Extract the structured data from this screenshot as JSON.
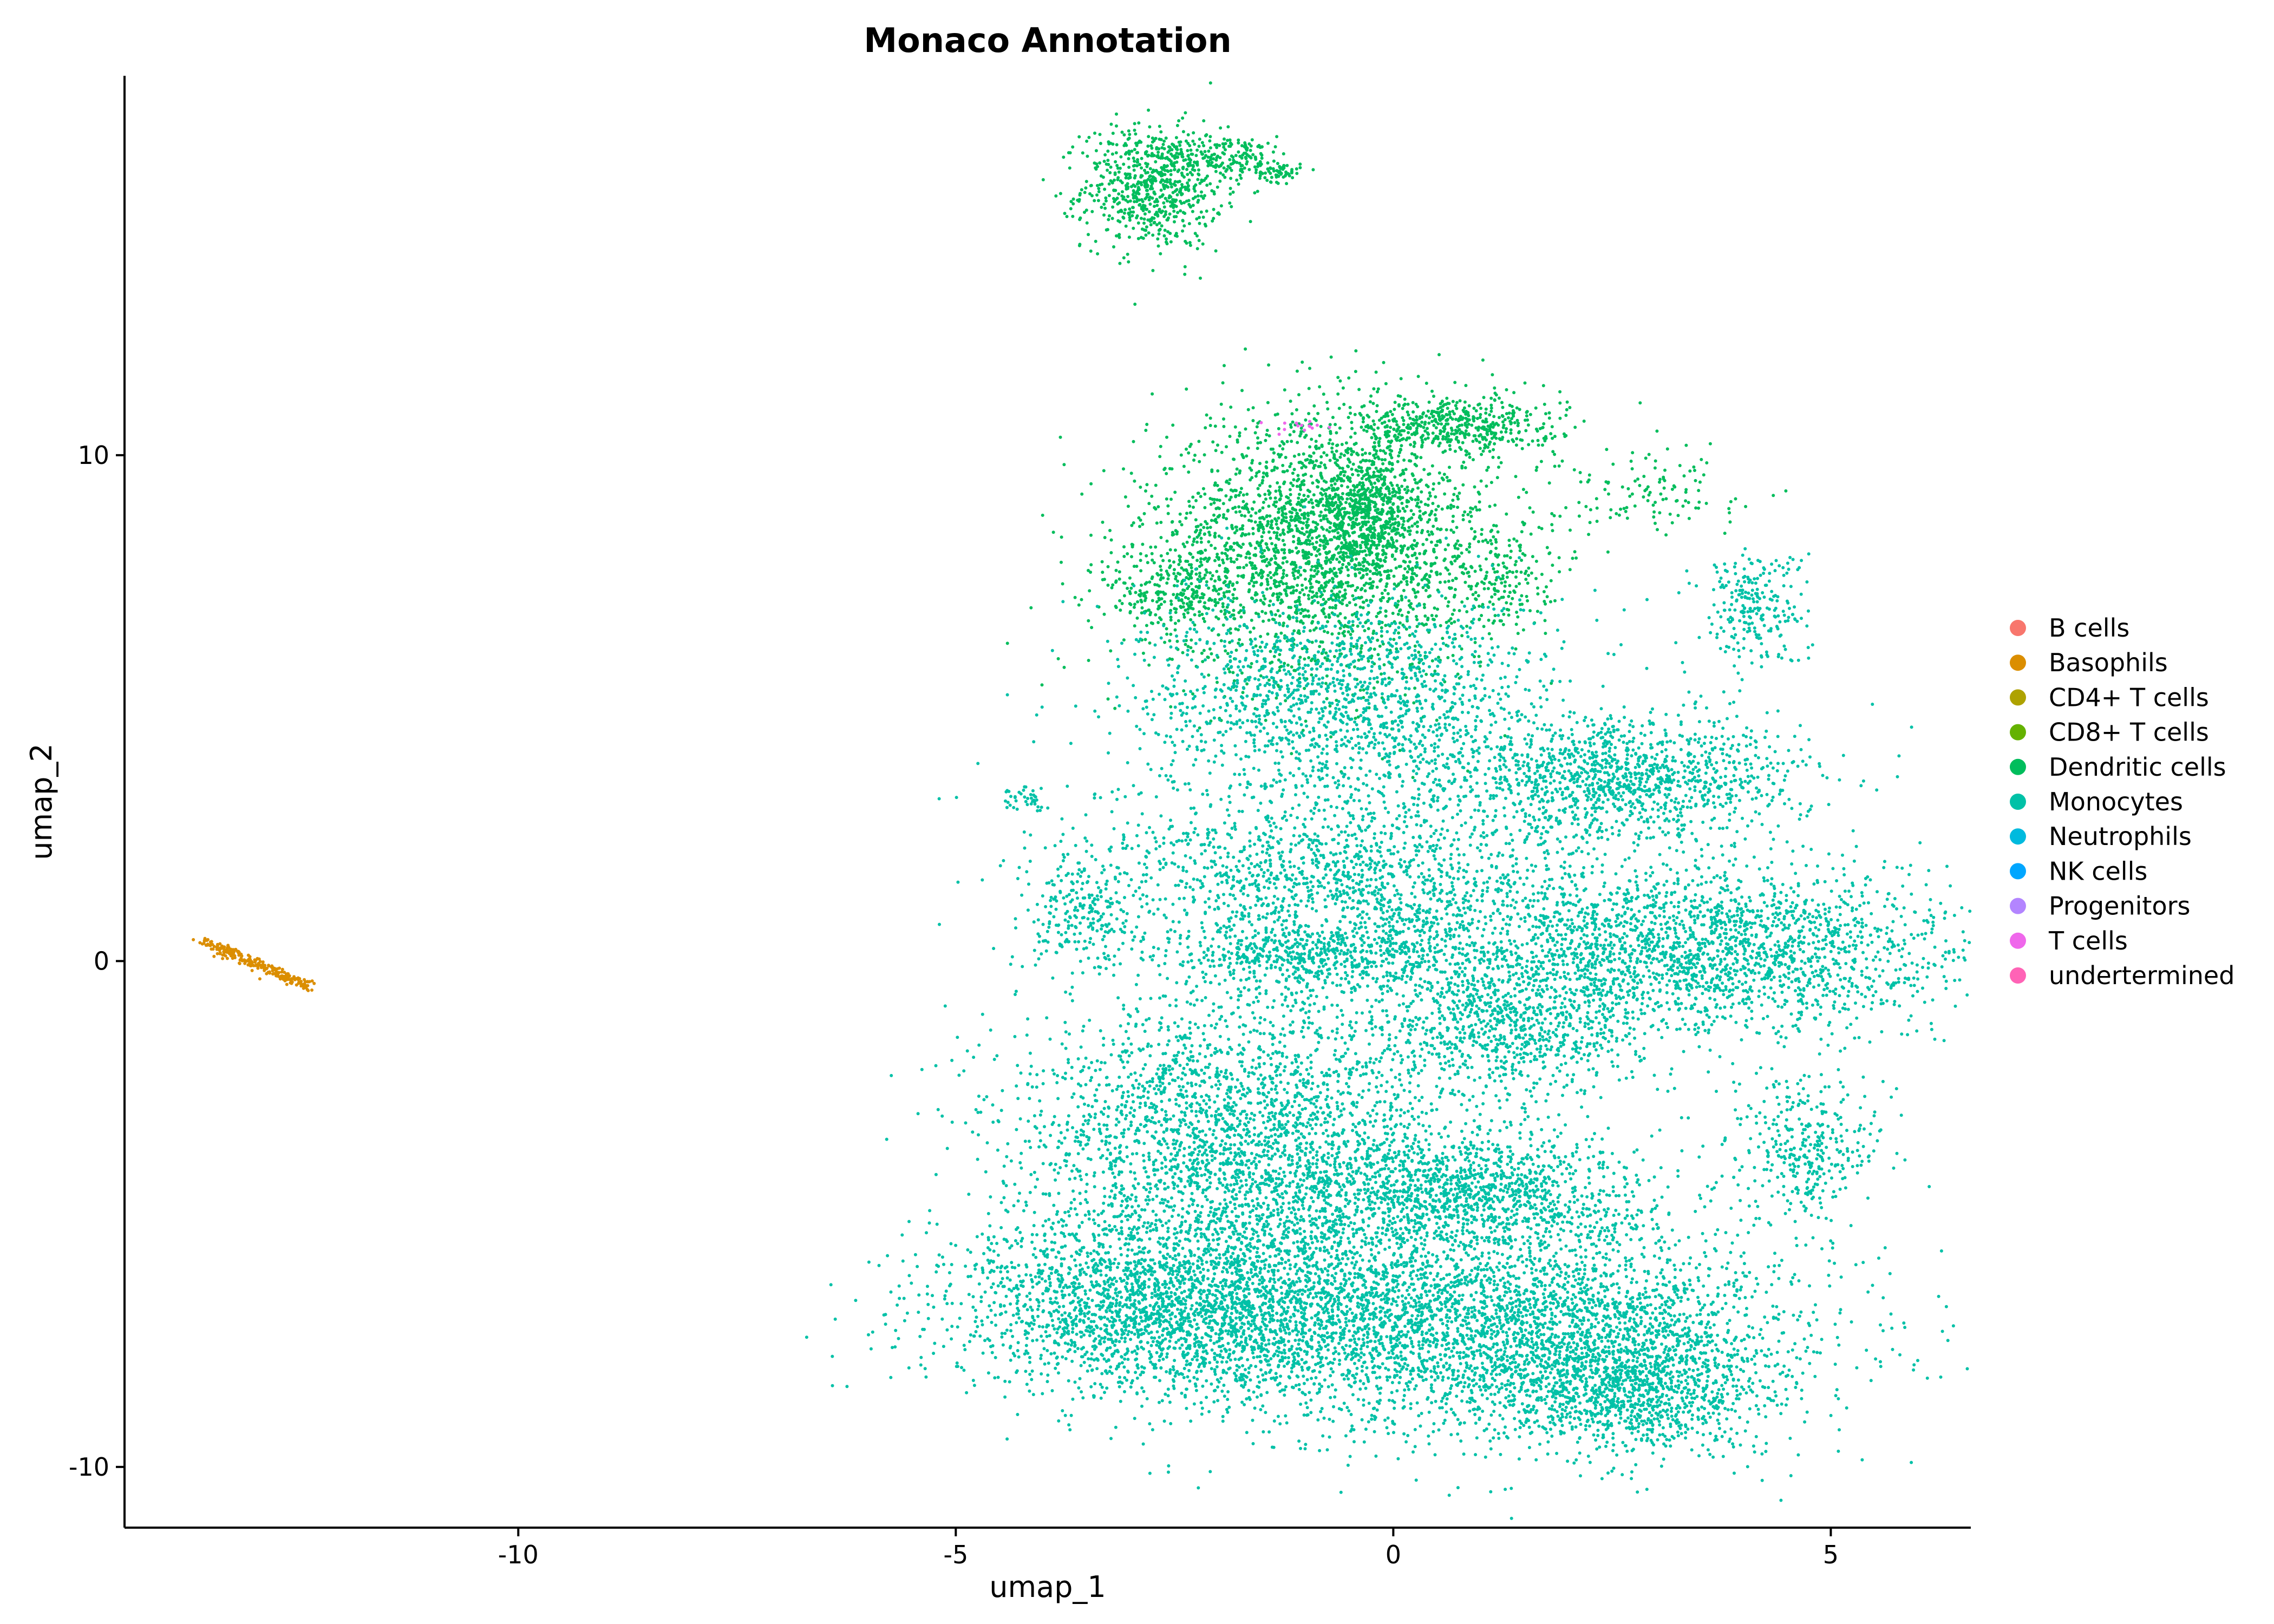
{
  "chart_data": {
    "type": "scatter",
    "title": "Monaco Annotation",
    "xlabel": "umap_1",
    "ylabel": "umap_2",
    "xlim": [
      -14.5,
      6.6
    ],
    "ylim": [
      -11.2,
      17.5
    ],
    "xticks": [
      -10,
      -5,
      0,
      5
    ],
    "xtick_labels": [
      "-10",
      "-5",
      "0",
      "5"
    ],
    "yticks": [
      -10,
      0,
      10
    ],
    "ytick_labels": [
      "-10",
      "0",
      "10"
    ],
    "grid": false,
    "legend_position": "right",
    "legend": [
      {
        "name": "B cells",
        "color": "#F8766D"
      },
      {
        "name": "Basophils",
        "color": "#DB8E00"
      },
      {
        "name": "CD4+ T cells",
        "color": "#AEA200"
      },
      {
        "name": "CD8+ T cells",
        "color": "#64B200"
      },
      {
        "name": "Dendritic cells",
        "color": "#00BD5C"
      },
      {
        "name": "Monocytes",
        "color": "#00C1A7"
      },
      {
        "name": "Neutrophils",
        "color": "#00BADE"
      },
      {
        "name": "NK cells",
        "color": "#00A6FF"
      },
      {
        "name": "Progenitors",
        "color": "#B385FF"
      },
      {
        "name": "T cells",
        "color": "#EF67EB"
      },
      {
        "name": "undertermined",
        "color": "#FF63B6"
      }
    ],
    "series": [
      {
        "name": "Basophils",
        "color": "#DB8E00",
        "clusters": [
          {
            "type": "line",
            "x1": -13.6,
            "y1": 0.4,
            "x2": -12.4,
            "y2": -0.5,
            "spread": 0.05,
            "n": 260
          }
        ]
      },
      {
        "name": "Dendritic cells",
        "color": "#00BD5C",
        "clusters": [
          {
            "cx": -2.75,
            "cy": 15.3,
            "sx": 0.4,
            "sy": 0.6,
            "n": 700
          },
          {
            "cx": -1.9,
            "cy": 15.9,
            "sx": 0.4,
            "sy": 0.2,
            "n": 180
          },
          {
            "cx": -1.3,
            "cy": 15.6,
            "sx": 0.12,
            "sy": 0.1,
            "n": 60
          },
          {
            "cx": -0.8,
            "cy": 8.2,
            "sx": 1.0,
            "sy": 1.3,
            "n": 2600
          },
          {
            "cx": -0.3,
            "cy": 8.9,
            "sx": 0.3,
            "sy": 0.6,
            "n": 500
          },
          {
            "cx": 0.7,
            "cy": 10.6,
            "sx": 0.6,
            "sy": 0.3,
            "n": 500
          },
          {
            "cx": -2.5,
            "cy": 7.3,
            "sx": 0.4,
            "sy": 0.5,
            "n": 250
          },
          {
            "cx": 1.2,
            "cy": 7.6,
            "sx": 0.3,
            "sy": 0.5,
            "n": 150
          },
          {
            "cx": 2.9,
            "cy": 9.3,
            "sx": 0.6,
            "sy": 0.4,
            "n": 120
          }
        ]
      },
      {
        "name": "Monocytes",
        "color": "#00C1A7",
        "clusters": [
          {
            "cx": 4.1,
            "cy": 7.0,
            "sx": 0.3,
            "sy": 0.6,
            "n": 250
          },
          {
            "cx": -0.5,
            "cy": 5.2,
            "sx": 1.2,
            "sy": 1.0,
            "n": 1500
          },
          {
            "cx": 2.7,
            "cy": 3.6,
            "sx": 1.0,
            "sy": 0.6,
            "n": 1200
          },
          {
            "cx": -4.2,
            "cy": 3.2,
            "sx": 0.15,
            "sy": 0.12,
            "n": 40
          },
          {
            "cx": -3.5,
            "cy": 0.9,
            "sx": 0.3,
            "sy": 0.5,
            "n": 200
          },
          {
            "cx": -0.5,
            "cy": 1.5,
            "sx": 1.5,
            "sy": 1.2,
            "n": 2000
          },
          {
            "cx": 3.6,
            "cy": 0.2,
            "sx": 1.5,
            "sy": 0.8,
            "n": 2200
          },
          {
            "cx": -0.9,
            "cy": 0.1,
            "sx": 0.8,
            "sy": 0.3,
            "n": 400
          },
          {
            "cx": 1.4,
            "cy": -1.2,
            "sx": 0.8,
            "sy": 0.7,
            "n": 900
          },
          {
            "cx": 4.7,
            "cy": -3.7,
            "sx": 0.4,
            "sy": 0.7,
            "n": 350
          },
          {
            "cx": -1.8,
            "cy": -3.5,
            "sx": 1.3,
            "sy": 1.4,
            "n": 2700
          },
          {
            "cx": 0.8,
            "cy": -4.6,
            "sx": 1.0,
            "sy": 0.6,
            "n": 1200
          },
          {
            "cx": -2.5,
            "cy": -6.8,
            "sx": 1.3,
            "sy": 0.9,
            "n": 2600
          },
          {
            "cx": 1.0,
            "cy": -7.2,
            "sx": 1.8,
            "sy": 1.1,
            "n": 3600
          },
          {
            "cx": 2.8,
            "cy": -8.4,
            "sx": 0.8,
            "sy": 0.7,
            "n": 1100
          }
        ]
      },
      {
        "name": "T cells",
        "color": "#EF67EB",
        "clusters": [
          {
            "cx": -1.1,
            "cy": 10.6,
            "sx": 0.2,
            "sy": 0.1,
            "n": 14
          }
        ]
      }
    ]
  }
}
